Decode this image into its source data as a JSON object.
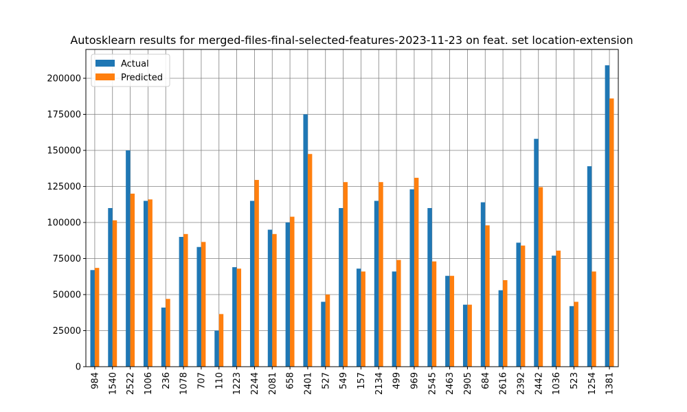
{
  "chart_data": {
    "type": "bar",
    "title": "Autosklearn results for merged-files-final-selected-features-2023-11-23 on feat. set location-extension",
    "xlabel": "",
    "ylabel": "",
    "ylim": [
      0,
      220000
    ],
    "yticks": [
      0,
      25000,
      50000,
      75000,
      100000,
      125000,
      150000,
      175000,
      200000
    ],
    "grid": true,
    "legend_position": "top-left",
    "categories": [
      "984",
      "1540",
      "2522",
      "1006",
      "236",
      "1078",
      "707",
      "110",
      "1223",
      "2244",
      "2081",
      "658",
      "2401",
      "527",
      "549",
      "157",
      "2134",
      "499",
      "969",
      "2545",
      "2463",
      "2905",
      "684",
      "2616",
      "2392",
      "2442",
      "1036",
      "523",
      "1254",
      "1381"
    ],
    "series": [
      {
        "name": "Actual",
        "color": "#1f77b4",
        "values": [
          67000,
          110000,
          150000,
          115000,
          41000,
          90000,
          83000,
          25000,
          69000,
          115000,
          95000,
          100000,
          175000,
          45000,
          110000,
          68000,
          115000,
          66000,
          123000,
          110000,
          63000,
          43000,
          114000,
          53000,
          86000,
          158000,
          77000,
          42000,
          139000,
          209000
        ]
      },
      {
        "name": "Predicted",
        "color": "#ff7f0e",
        "values": [
          68500,
          101500,
          120000,
          116000,
          47000,
          92000,
          86500,
          36500,
          68000,
          129500,
          92000,
          104000,
          147500,
          50000,
          128000,
          66000,
          128000,
          74000,
          131000,
          73000,
          63000,
          43000,
          98000,
          60000,
          84000,
          124500,
          80500,
          45000,
          66000,
          186000
        ]
      }
    ]
  }
}
